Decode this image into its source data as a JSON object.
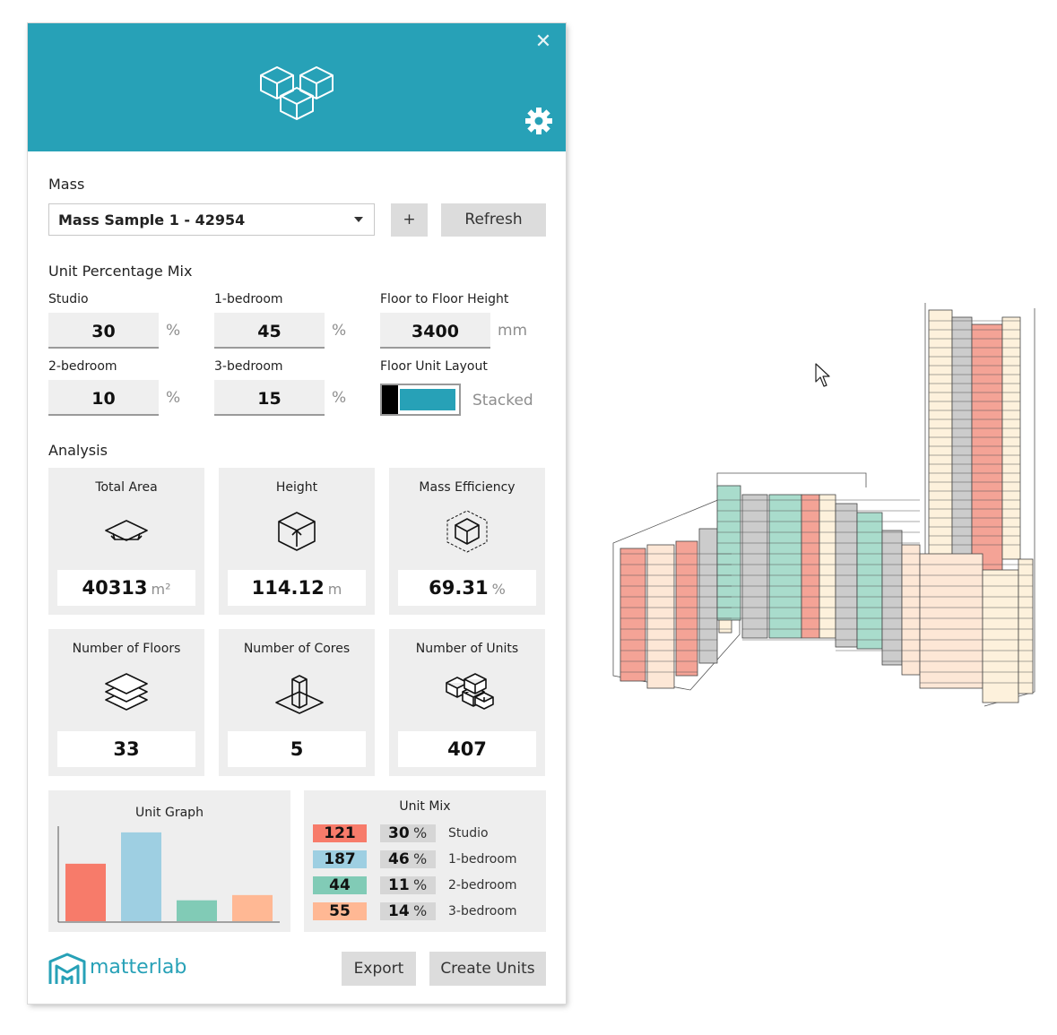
{
  "header": {
    "close_icon": "close-icon",
    "logo_icon": "cubes-icon",
    "settings_icon": "gear-icon",
    "color": "#27a1b7"
  },
  "mass": {
    "label": "Mass",
    "selected": "Mass Sample 1 - 42954",
    "add_label": "+",
    "refresh_label": "Refresh"
  },
  "unit_mix_inputs": {
    "section_label": "Unit Percentage Mix",
    "studio": {
      "label": "Studio",
      "value": "30",
      "unit": "%"
    },
    "one_bed": {
      "label": "1-bedroom",
      "value": "45",
      "unit": "%"
    },
    "floor_height": {
      "label": "Floor to Floor Height",
      "value": "3400",
      "unit": "mm"
    },
    "two_bed": {
      "label": "2-bedroom",
      "value": "10",
      "unit": "%"
    },
    "three_bed": {
      "label": "3-bedroom",
      "value": "15",
      "unit": "%"
    },
    "layout": {
      "label": "Floor Unit Layout",
      "value": "Stacked"
    }
  },
  "analysis": {
    "section_label": "Analysis",
    "total_area": {
      "title": "Total Area",
      "value": "40313",
      "unit": "m²",
      "icon": "area-icon"
    },
    "height": {
      "title": "Height",
      "value": "114.12",
      "unit": "m",
      "icon": "height-cube-icon"
    },
    "efficiency": {
      "title": "Mass Efficiency",
      "value": "69.31",
      "unit": "%",
      "icon": "efficiency-cube-icon"
    },
    "floors": {
      "title": "Number of Floors",
      "value": "33",
      "icon": "layers-icon"
    },
    "cores": {
      "title": "Number of Cores",
      "value": "5",
      "icon": "core-icon"
    },
    "units": {
      "title": "Number of Units",
      "value": "407",
      "icon": "units-icon"
    }
  },
  "unit_graph": {
    "title": "Unit Graph"
  },
  "chart_data": {
    "type": "bar",
    "categories": [
      "Studio",
      "1-bedroom",
      "2-bedroom",
      "3-bedroom"
    ],
    "values": [
      121,
      187,
      44,
      55
    ],
    "colors": [
      "#f77b6a",
      "#9ecfe2",
      "#81cbb6",
      "#ffb894"
    ],
    "title": "Unit Graph",
    "xlabel": "",
    "ylabel": "",
    "ylim": [
      0,
      200
    ],
    "grid": false
  },
  "unit_mix": {
    "title": "Unit Mix",
    "rows": [
      {
        "count": "121",
        "pct": "30",
        "sym": "%",
        "name": "Studio",
        "color": "#f77b6a"
      },
      {
        "count": "187",
        "pct": "46",
        "sym": "%",
        "name": "1-bedroom",
        "color": "#9ecfe2"
      },
      {
        "count": "44",
        "pct": "11",
        "sym": "%",
        "name": "2-bedroom",
        "color": "#81cbb6"
      },
      {
        "count": "55",
        "pct": "14",
        "sym": "%",
        "name": "3-bedroom",
        "color": "#ffb894"
      }
    ]
  },
  "footer": {
    "brand": "matterlab",
    "export_label": "Export",
    "create_label": "Create Units"
  },
  "viewport": {
    "model_name": "building-massing-model",
    "colors": {
      "studio": "#f4a396",
      "one_bed": "#cccccc",
      "two_bed": "#a9dccc",
      "three_bed": "#fde7d6",
      "neutral": "#fdf1dc"
    }
  }
}
